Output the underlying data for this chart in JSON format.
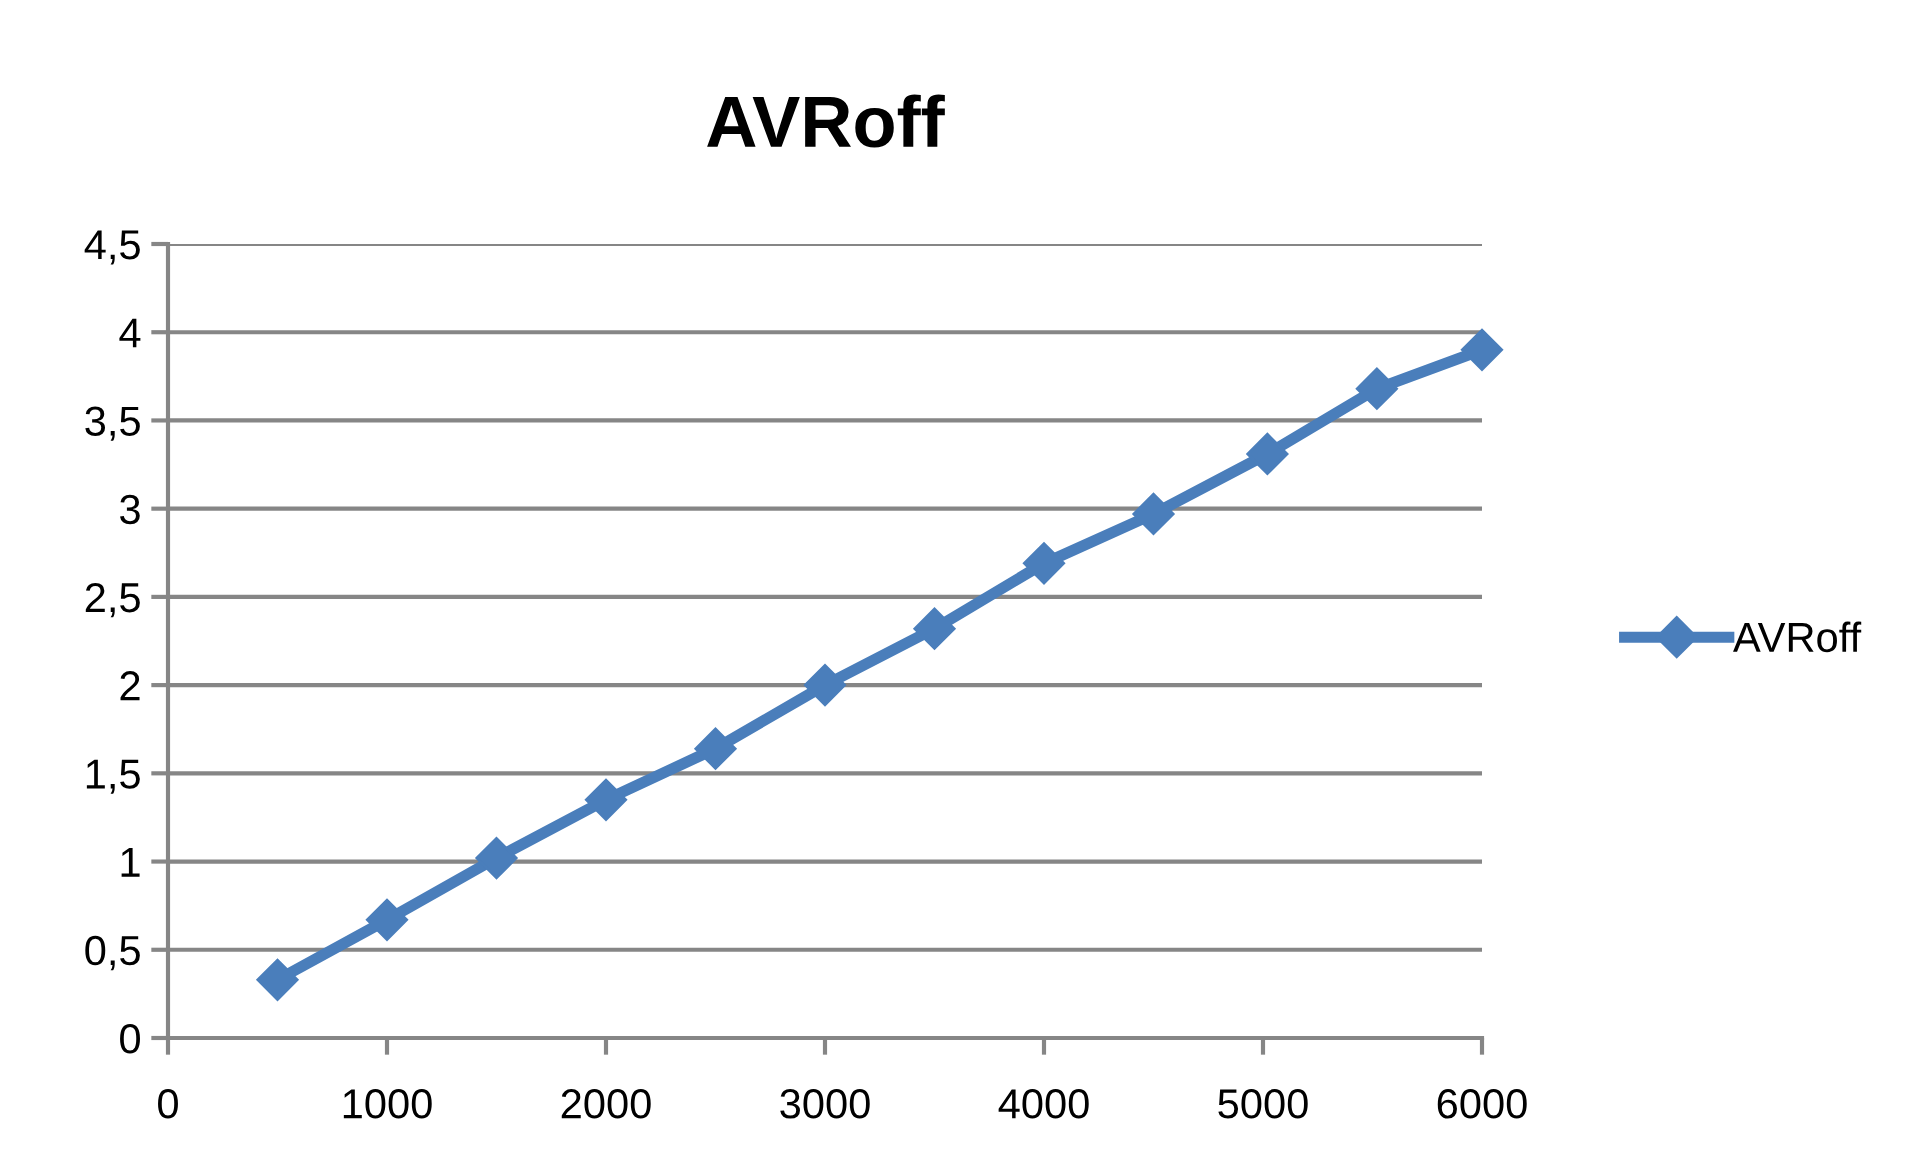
{
  "chart_data": {
    "type": "line",
    "title": "AVRoff",
    "series": [
      {
        "name": "AVRoff",
        "color": "#4a7ebb",
        "x": [
          500,
          1000,
          1500,
          2000,
          2500,
          3000,
          3500,
          4000,
          4500,
          5020,
          5520,
          6000
        ],
        "values": [
          0.33,
          0.67,
          1.02,
          1.35,
          1.64,
          2.0,
          2.32,
          2.69,
          2.97,
          3.31,
          3.68,
          3.9
        ]
      }
    ],
    "xlim": [
      0,
      6000
    ],
    "xticks": [
      0,
      1000,
      2000,
      3000,
      4000,
      5000,
      6000
    ],
    "ylim": [
      0,
      4.5
    ],
    "yticks": [
      0,
      {
        "value": 0.5,
        "label": "0,5"
      },
      1,
      {
        "value": 1.5,
        "label": "1,5"
      },
      2,
      {
        "value": 2.5,
        "label": "2,5"
      },
      3,
      {
        "value": 3.5,
        "label": "3,5"
      },
      4,
      {
        "value": 4.5,
        "label": "4,5"
      }
    ],
    "grid": "y",
    "legend": "right",
    "marker": "diamond",
    "line_style": "solid"
  }
}
